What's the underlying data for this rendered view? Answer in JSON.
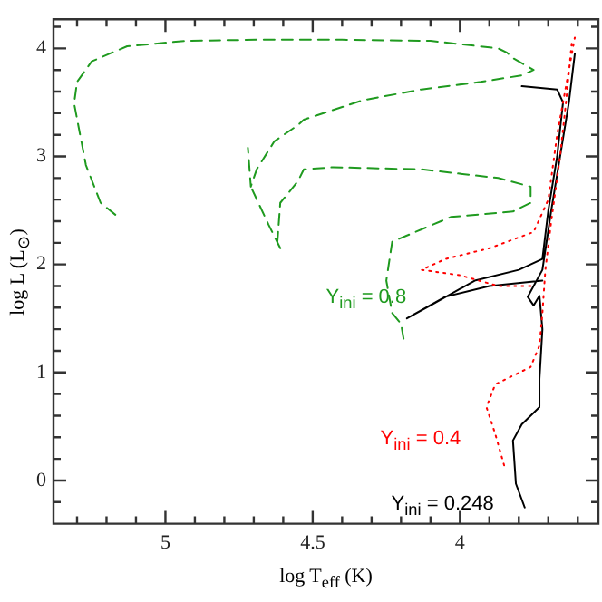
{
  "chart_data": {
    "type": "line",
    "xlabel": "log T$_{eff}$  (K)",
    "ylabel": "log L (L$_{⊙}$)",
    "xlim": [
      5.38,
      3.53
    ],
    "xticks": [
      {
        "value": 5.3,
        "label": null
      },
      {
        "value": 5.2,
        "label": null
      },
      {
        "value": 5.1,
        "label": null
      },
      5,
      {
        "value": 4.9,
        "label": null
      },
      {
        "value": 4.8,
        "label": null
      },
      {
        "value": 4.7,
        "label": null
      },
      {
        "value": 4.6,
        "label": null
      },
      4.5,
      {
        "value": 4.4,
        "label": null
      },
      {
        "value": 4.3,
        "label": null
      },
      {
        "value": 4.2,
        "label": null
      },
      {
        "value": 4.1,
        "label": null
      },
      4,
      {
        "value": 3.9,
        "label": null
      },
      {
        "value": 3.8,
        "label": null
      },
      {
        "value": 3.7,
        "label": null
      },
      {
        "value": 3.6,
        "label": null
      }
    ],
    "ylim": [
      -0.4,
      4.27
    ],
    "yticks": [
      {
        "value": -0.2,
        "label": null
      },
      0,
      {
        "value": 0.2,
        "label": null
      },
      {
        "value": 0.4,
        "label": null
      },
      {
        "value": 0.6,
        "label": null
      },
      {
        "value": 0.8,
        "label": null
      },
      1,
      {
        "value": 1.2,
        "label": null
      },
      {
        "value": 1.4,
        "label": null
      },
      {
        "value": 1.6,
        "label": null
      },
      {
        "value": 1.8,
        "label": null
      },
      2,
      {
        "value": 2.2,
        "label": null
      },
      {
        "value": 2.4,
        "label": null
      },
      {
        "value": 2.6,
        "label": null
      },
      {
        "value": 2.8,
        "label": null
      },
      3,
      {
        "value": 3.2,
        "label": null
      },
      {
        "value": 3.4,
        "label": null
      },
      {
        "value": 3.6,
        "label": null
      },
      {
        "value": 3.8,
        "label": null
      },
      4,
      {
        "value": 4.2,
        "label": null
      }
    ],
    "grid": false,
    "legend": false,
    "marker": "none",
    "series": [
      {
        "name": "Y$_{ini}$ = 0.8",
        "color": "#1f9a1f",
        "line_style": "dashed",
        "x": [
          5.17,
          5.22,
          5.27,
          5.31,
          5.3,
          5.25,
          5.13,
          4.93,
          4.69,
          4.4,
          4.1,
          3.87,
          3.84,
          3.82,
          3.75,
          3.79,
          3.93,
          4.13,
          4.33,
          4.53,
          4.55,
          4.63,
          4.69,
          4.71,
          4.72,
          null,
          4.61,
          4.65,
          4.71,
          null,
          4.62,
          4.61,
          4.55,
          4.53,
          4.43,
          4.13,
          3.87,
          3.76,
          3.76,
          3.82,
          4.03,
          4.23,
          4.25,
          4.23,
          4.2,
          4.19
        ],
        "values": [
          2.46,
          2.57,
          2.92,
          3.49,
          3.69,
          3.88,
          4.02,
          4.07,
          4.08,
          4.08,
          4.07,
          4.0,
          3.96,
          3.91,
          3.8,
          3.75,
          3.69,
          3.62,
          3.52,
          3.34,
          3.29,
          3.14,
          2.88,
          2.72,
          3.08,
          null,
          2.15,
          2.37,
          2.72,
          null,
          2.2,
          2.57,
          2.77,
          2.88,
          2.9,
          2.88,
          2.8,
          2.72,
          2.57,
          2.49,
          2.44,
          2.21,
          1.85,
          1.55,
          1.45,
          1.29
        ]
      },
      {
        "name": "Y$_{ini}$ = 0.4",
        "color": "#ff0000",
        "line_style": "dotted",
        "x": [
          3.85,
          3.88,
          3.91,
          3.88,
          3.76,
          3.73,
          3.72,
          3.71,
          3.69,
          3.66,
          3.64,
          3.62,
          null,
          3.76,
          3.87,
          4.0,
          4.13,
          4.05,
          3.9,
          3.75,
          3.7,
          3.67,
          3.63,
          3.61
        ],
        "values": [
          0.14,
          0.43,
          0.68,
          0.89,
          1.05,
          1.25,
          1.55,
          1.95,
          2.4,
          3.0,
          3.5,
          4.06,
          null,
          1.8,
          1.8,
          1.9,
          1.95,
          2.05,
          2.15,
          2.3,
          2.6,
          3.2,
          3.8,
          4.1
        ]
      },
      {
        "name": "Y$_{ini}$ = 0.248",
        "color": "#000000",
        "line_style": "solid",
        "x": [
          3.78,
          3.81,
          3.82,
          3.79,
          3.73,
          3.73,
          3.72,
          3.73,
          3.75,
          3.77,
          3.72,
          3.69,
          3.66,
          3.63,
          3.61,
          null,
          3.72,
          3.9,
          4.05,
          4.18,
          4.1,
          3.95,
          3.8,
          3.72,
          3.7,
          3.67,
          3.65,
          3.67,
          3.79
        ],
        "values": [
          -0.25,
          -0.03,
          0.37,
          0.52,
          0.68,
          0.94,
          1.4,
          1.71,
          1.62,
          1.7,
          1.95,
          2.5,
          3.0,
          3.5,
          3.95,
          null,
          1.85,
          1.8,
          1.7,
          1.5,
          1.62,
          1.85,
          1.95,
          2.05,
          2.5,
          3.0,
          3.5,
          3.62,
          3.65
        ]
      }
    ]
  }
}
